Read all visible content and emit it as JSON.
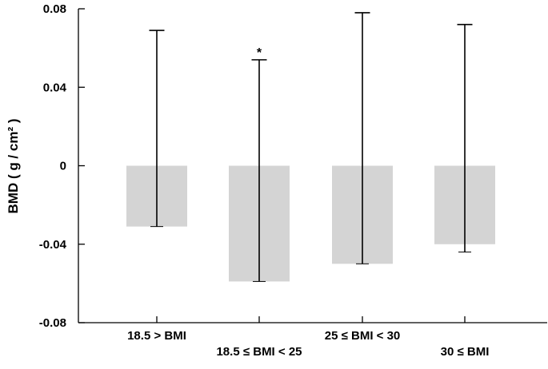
{
  "chart_data": {
    "type": "bar",
    "title": "",
    "xlabel": "",
    "ylabel": "BMD ( g / cm² )",
    "ylim": [
      -0.08,
      0.08
    ],
    "yticks": [
      0.08,
      0.04,
      0,
      -0.04,
      -0.08
    ],
    "ytick_labels": [
      "0.08",
      "0.04",
      "0",
      "-0.04",
      "-0.08"
    ],
    "categories": [
      "18.5 > BMI",
      "18.5 ≤ BMI < 25",
      "25 ≤ BMI < 30",
      "30 ≤ BMI"
    ],
    "values": [
      -0.031,
      -0.059,
      -0.05,
      -0.04
    ],
    "error_upper": [
      0.069,
      0.054,
      0.078,
      0.072
    ],
    "error_lower": [
      -0.031,
      -0.059,
      -0.05,
      -0.044
    ],
    "annotations": [
      "",
      "*",
      "",
      ""
    ],
    "grid": false,
    "colors": {
      "bar": "#d4d4d4",
      "axis": "#000000"
    }
  }
}
